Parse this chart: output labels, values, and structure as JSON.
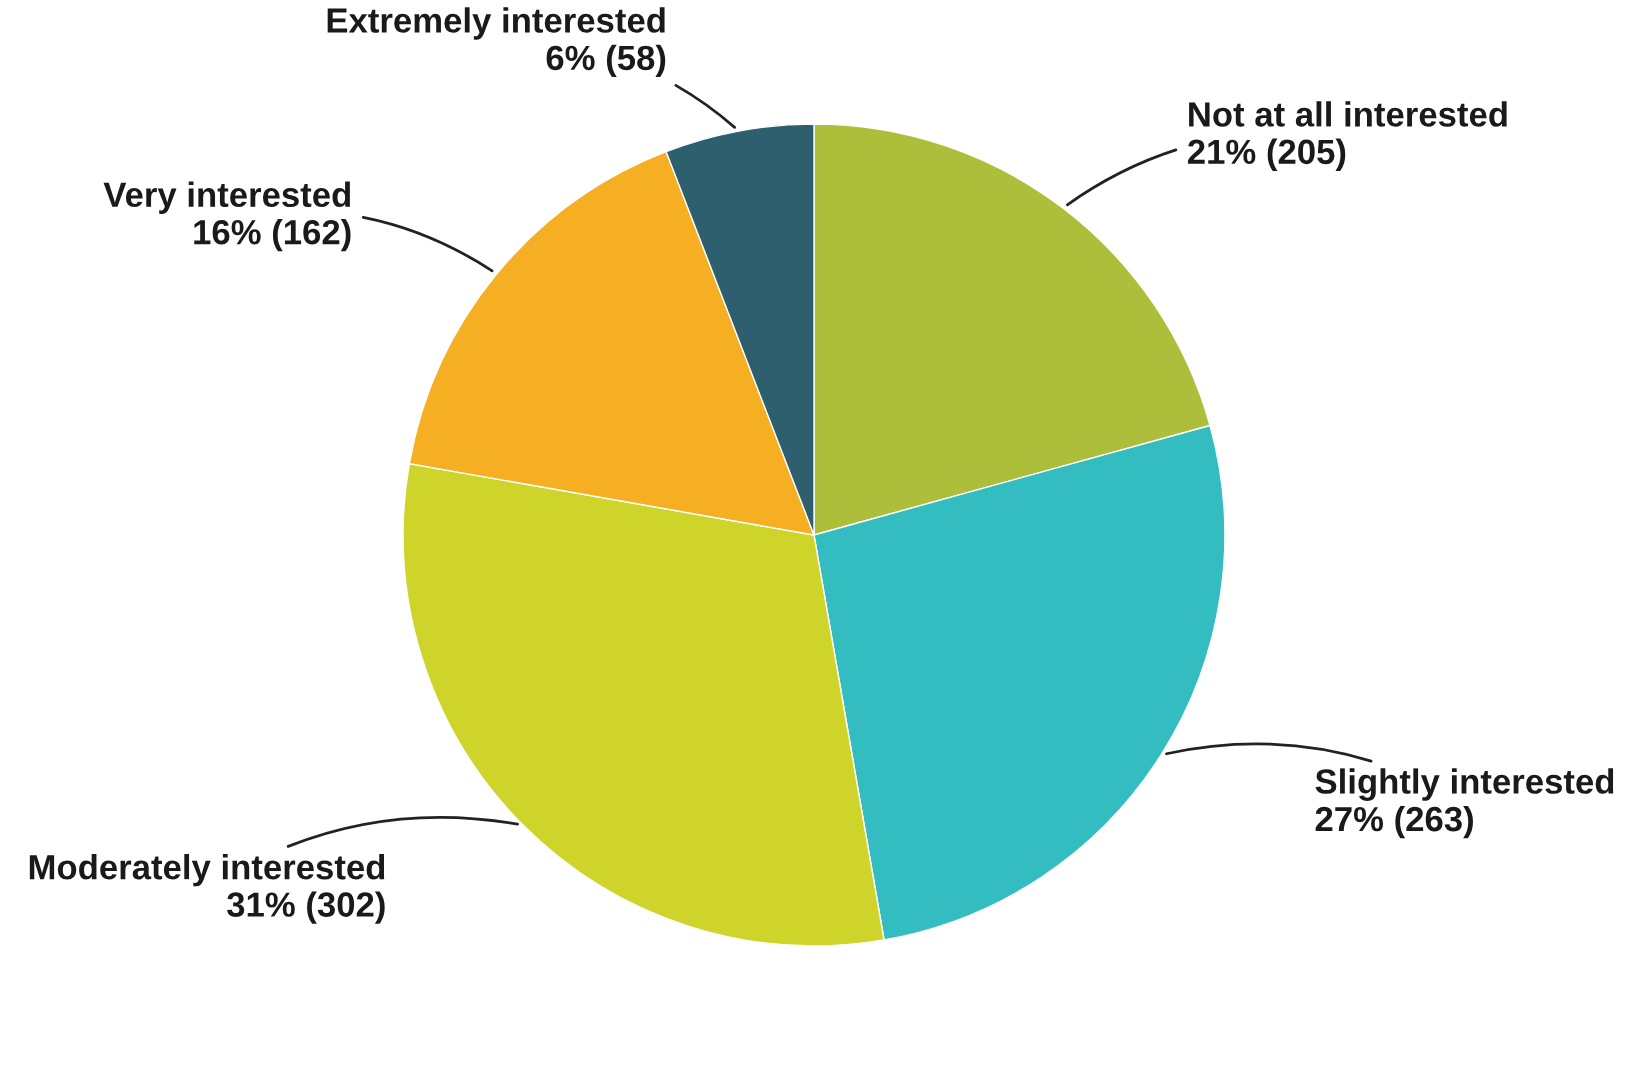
{
  "chart_data": {
    "type": "pie",
    "categories": [
      "Not at all interested",
      "Slightly interested",
      "Moderately interested",
      "Very interested",
      "Extremely interested"
    ],
    "values": [
      205,
      263,
      302,
      162,
      58
    ],
    "value_labels": [
      "21% (205)",
      "27% (263)",
      "31% (302)",
      "16% (162)",
      "6% (58)"
    ],
    "colors": [
      "#adbf3a",
      "#33bdc0",
      "#cfd42a",
      "#f6ae22",
      "#2e5f6e"
    ],
    "legend": false
  }
}
